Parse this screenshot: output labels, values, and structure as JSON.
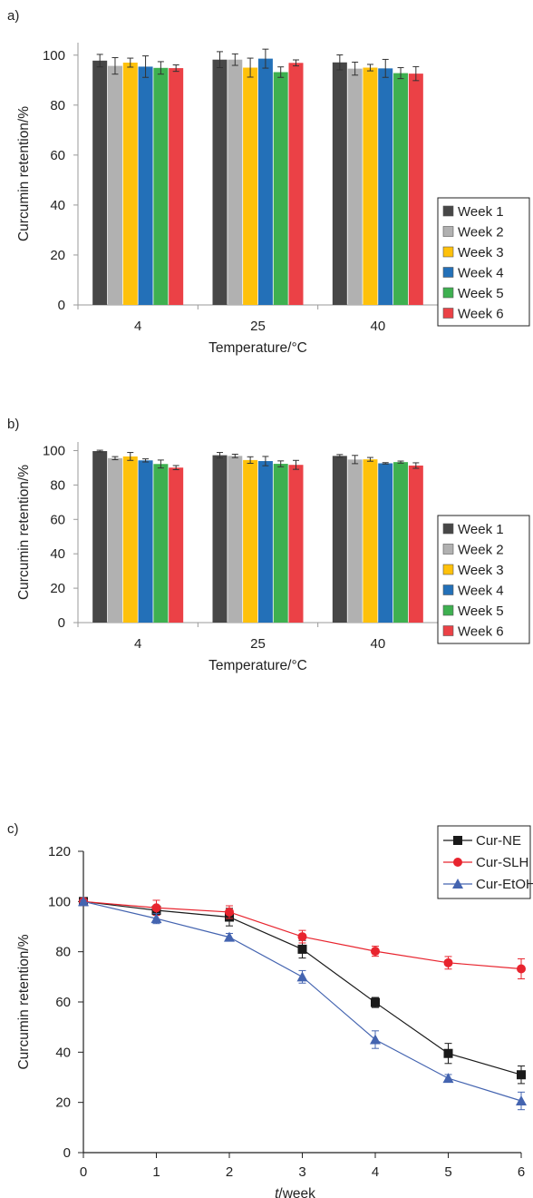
{
  "chart_data": [
    {
      "type": "bar",
      "panel_label": "a)",
      "categories": [
        "4",
        "25",
        "40"
      ],
      "xlabel": "Temperature/°C",
      "ylabel": "Curcumin retention/%",
      "ylim": [
        0,
        100
      ],
      "yticks": [
        "0",
        "20",
        "40",
        "60",
        "80",
        "100"
      ],
      "legend_position": "right",
      "series": [
        {
          "name": "Week 1",
          "color": "#474747",
          "values": [
            97.8,
            98.2,
            97.1
          ],
          "errors": [
            2.5,
            3.2,
            3.0
          ]
        },
        {
          "name": "Week 2",
          "color": "#b1b1b1",
          "values": [
            95.7,
            98.2,
            94.6
          ],
          "errors": [
            3.3,
            2.3,
            2.6
          ]
        },
        {
          "name": "Week 3",
          "color": "#fec10b",
          "values": [
            97.0,
            95.0,
            95.0
          ],
          "errors": [
            1.8,
            3.8,
            1.3
          ]
        },
        {
          "name": "Week 4",
          "color": "#2370b8",
          "values": [
            95.4,
            98.6,
            94.7
          ],
          "errors": [
            4.3,
            3.8,
            3.6
          ]
        },
        {
          "name": "Week 5",
          "color": "#3eb050",
          "values": [
            94.9,
            93.2,
            92.8
          ],
          "errors": [
            2.5,
            2.1,
            2.2
          ]
        },
        {
          "name": "Week 6",
          "color": "#eb4146",
          "values": [
            94.8,
            96.9,
            92.6
          ],
          "errors": [
            1.3,
            1.2,
            2.8
          ]
        }
      ]
    },
    {
      "type": "bar",
      "panel_label": "b)",
      "categories": [
        "4",
        "25",
        "40"
      ],
      "xlabel": "Temperature/°C",
      "ylabel": "Curcumin retention/%",
      "ylim": [
        0,
        100
      ],
      "yticks": [
        "0",
        "20",
        "40",
        "60",
        "80",
        "100"
      ],
      "legend_position": "right",
      "series": [
        {
          "name": "Week 1",
          "color": "#474747",
          "values": [
            99.7,
            97.3,
            96.9
          ],
          "errors": [
            0.5,
            1.6,
            0.8
          ]
        },
        {
          "name": "Week 2",
          "color": "#b1b1b1",
          "values": [
            95.6,
            96.9,
            94.8
          ],
          "errors": [
            0.9,
            1.0,
            2.4
          ]
        },
        {
          "name": "Week 3",
          "color": "#fec10b",
          "values": [
            96.6,
            94.5,
            94.9
          ],
          "errors": [
            2.3,
            1.9,
            1.1
          ]
        },
        {
          "name": "Week 4",
          "color": "#2370b8",
          "values": [
            94.3,
            93.9,
            92.6
          ],
          "errors": [
            0.9,
            2.7,
            0.4
          ]
        },
        {
          "name": "Week 5",
          "color": "#3eb050",
          "values": [
            92.2,
            92.3,
            93.3
          ],
          "errors": [
            2.3,
            1.7,
            0.6
          ]
        },
        {
          "name": "Week 6",
          "color": "#eb4146",
          "values": [
            90.1,
            91.7,
            91.3
          ],
          "errors": [
            1.2,
            2.6,
            1.6
          ]
        }
      ]
    },
    {
      "type": "line",
      "panel_label": "c)",
      "x": [
        0,
        1,
        2,
        3,
        4,
        5,
        6
      ],
      "xlabel_italic": "t",
      "xlabel_rest": "/week",
      "ylabel": "Curcumin retention/%",
      "xlim": [
        0,
        6
      ],
      "ylim": [
        0,
        120
      ],
      "xticks": [
        "0",
        "1",
        "2",
        "3",
        "4",
        "5",
        "6"
      ],
      "yticks": [
        "0",
        "20",
        "40",
        "60",
        "80",
        "100",
        "120"
      ],
      "legend_position": "top-right",
      "series": [
        {
          "name": "Cur-NE",
          "color": "#1a1a1a",
          "marker": "square",
          "values": [
            100,
            96.5,
            93.8,
            81.0,
            59.8,
            39.5,
            31.0
          ],
          "errors": [
            0.5,
            2.0,
            3.5,
            3.5,
            2.0,
            4.0,
            3.5
          ]
        },
        {
          "name": "Cur-SLH",
          "color": "#e8242e",
          "marker": "circle",
          "values": [
            100,
            97.5,
            95.8,
            86.0,
            80.2,
            75.6,
            73.2
          ],
          "errors": [
            0.5,
            3.0,
            2.5,
            2.5,
            2.0,
            2.5,
            4.0
          ]
        },
        {
          "name": "Cur-EtOH",
          "color": "#4464b0",
          "marker": "triangle",
          "values": [
            100,
            93.2,
            85.8,
            70.0,
            45.0,
            29.6,
            20.6
          ],
          "errors": [
            0.5,
            2.0,
            1.5,
            2.5,
            3.5,
            1.5,
            3.5
          ]
        }
      ]
    }
  ]
}
